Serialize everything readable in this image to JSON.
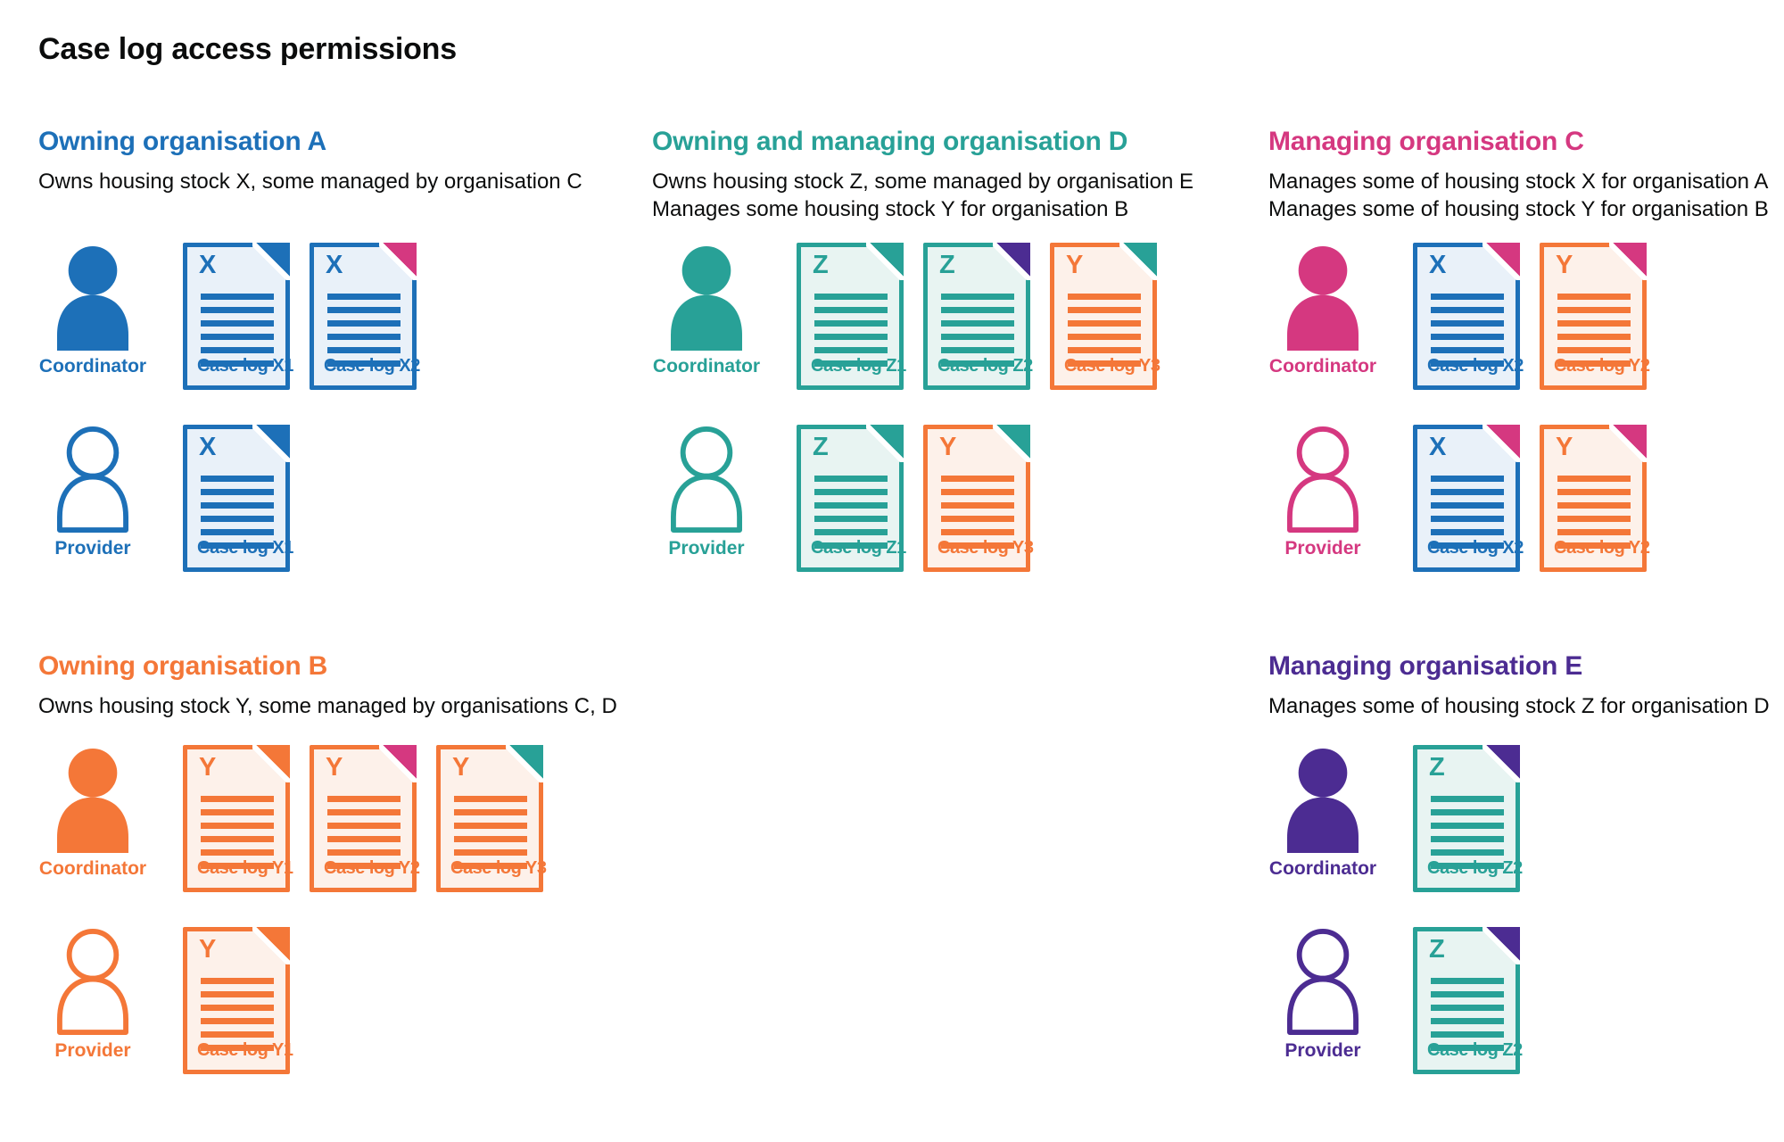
{
  "page": {
    "title": "Case log access permissions"
  },
  "palette": {
    "text": "#0b0c0c",
    "blue": "#1d70b8",
    "teal": "#28a197",
    "pink": "#d53880",
    "orange": "#f47738",
    "purple": "#4c2c92",
    "doc_bg_blue": "#e9f1f9",
    "doc_bg_teal": "#e8f4f2",
    "doc_bg_orange": "#fdf1ea"
  },
  "sections": [
    {
      "id": "owning-organisation-a",
      "title": "Owning organisation A",
      "color_key": "blue",
      "description_lines": [
        "Owns housing stock X, some managed by organisation C"
      ],
      "rows": [
        {
          "role": "Coordinator",
          "person": "filled",
          "docs": [
            {
              "letter": "X",
              "label": "Case log X1",
              "stock": "blue",
              "fold": "blue"
            },
            {
              "letter": "X",
              "label": "Case log X2",
              "stock": "blue",
              "fold": "pink"
            }
          ]
        },
        {
          "role": "Provider",
          "person": "outline",
          "docs": [
            {
              "letter": "X",
              "label": "Case log X1",
              "stock": "blue",
              "fold": "blue"
            }
          ]
        }
      ]
    },
    {
      "id": "owning-and-managing-organisation-d",
      "title": "Owning and managing organisation D",
      "color_key": "teal",
      "description_lines": [
        "Owns housing stock Z, some managed by organisation E",
        "Manages some housing stock Y for organisation B"
      ],
      "rows": [
        {
          "role": "Coordinator",
          "person": "filled",
          "docs": [
            {
              "letter": "Z",
              "label": "Case log Z1",
              "stock": "teal",
              "fold": "teal"
            },
            {
              "letter": "Z",
              "label": "Case log Z2",
              "stock": "teal",
              "fold": "purple"
            },
            {
              "letter": "Y",
              "label": "Case log Y3",
              "stock": "orange",
              "fold": "teal"
            }
          ]
        },
        {
          "role": "Provider",
          "person": "outline",
          "docs": [
            {
              "letter": "Z",
              "label": "Case log Z1",
              "stock": "teal",
              "fold": "teal"
            },
            {
              "letter": "Y",
              "label": "Case log Y3",
              "stock": "orange",
              "fold": "teal"
            }
          ]
        }
      ]
    },
    {
      "id": "managing-organisation-c",
      "title": "Managing organisation C",
      "color_key": "pink",
      "description_lines": [
        "Manages some of housing stock X for organisation A",
        "Manages some of housing stock Y for organisation B"
      ],
      "rows": [
        {
          "role": "Coordinator",
          "person": "filled",
          "docs": [
            {
              "letter": "X",
              "label": "Case log X2",
              "stock": "blue",
              "fold": "pink"
            },
            {
              "letter": "Y",
              "label": "Case log Y2",
              "stock": "orange",
              "fold": "pink"
            }
          ]
        },
        {
          "role": "Provider",
          "person": "outline",
          "docs": [
            {
              "letter": "X",
              "label": "Case log X2",
              "stock": "blue",
              "fold": "pink"
            },
            {
              "letter": "Y",
              "label": "Case log Y2",
              "stock": "orange",
              "fold": "pink"
            }
          ]
        }
      ]
    },
    {
      "id": "owning-organisation-b",
      "title": "Owning organisation B",
      "color_key": "orange",
      "description_lines": [
        "Owns housing stock Y, some managed by organisations C, D"
      ],
      "rows": [
        {
          "role": "Coordinator",
          "person": "filled",
          "docs": [
            {
              "letter": "Y",
              "label": "Case log Y1",
              "stock": "orange",
              "fold": "orange"
            },
            {
              "letter": "Y",
              "label": "Case log Y2",
              "stock": "orange",
              "fold": "pink"
            },
            {
              "letter": "Y",
              "label": "Case log Y3",
              "stock": "orange",
              "fold": "teal"
            }
          ]
        },
        {
          "role": "Provider",
          "person": "outline",
          "docs": [
            {
              "letter": "Y",
              "label": "Case log Y1",
              "stock": "orange",
              "fold": "orange"
            }
          ]
        }
      ]
    },
    {
      "id": "managing-organisation-e",
      "title": "Managing organisation E",
      "color_key": "purple",
      "description_lines": [
        "Manages some of housing stock Z for organisation D"
      ],
      "rows": [
        {
          "role": "Coordinator",
          "person": "filled",
          "docs": [
            {
              "letter": "Z",
              "label": "Case log Z2",
              "stock": "teal",
              "fold": "purple"
            }
          ]
        },
        {
          "role": "Provider",
          "person": "outline",
          "docs": [
            {
              "letter": "Z",
              "label": "Case log Z2",
              "stock": "teal",
              "fold": "purple"
            }
          ]
        }
      ]
    }
  ]
}
